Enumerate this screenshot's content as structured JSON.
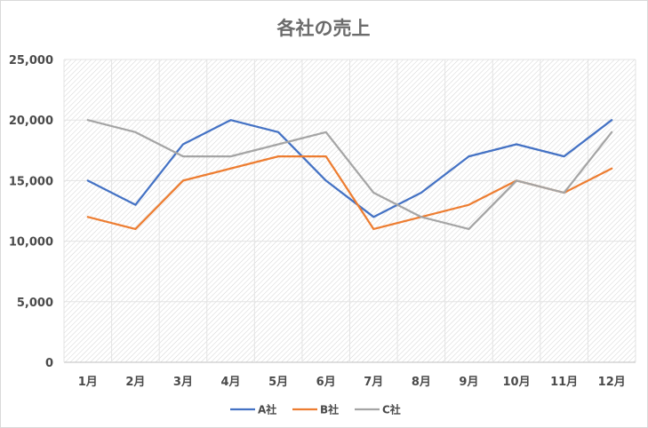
{
  "chart_data": {
    "type": "line",
    "title": "各社の売上",
    "categories": [
      "1月",
      "2月",
      "3月",
      "4月",
      "5月",
      "6月",
      "7月",
      "8月",
      "9月",
      "10月",
      "11月",
      "12月"
    ],
    "ylim": [
      0,
      25000
    ],
    "yticks": [
      0,
      5000,
      10000,
      15000,
      20000,
      25000
    ],
    "ytick_labels": [
      "0",
      "5,000",
      "10,000",
      "15,000",
      "20,000",
      "25,000"
    ],
    "grid": true,
    "legend_position": "bottom",
    "series": [
      {
        "name": "A社",
        "color": "#4472C4",
        "values": [
          15000,
          13000,
          18000,
          20000,
          19000,
          15000,
          12000,
          14000,
          17000,
          18000,
          17000,
          20000
        ]
      },
      {
        "name": "B社",
        "color": "#ED7D31",
        "values": [
          12000,
          11000,
          15000,
          16000,
          17000,
          17000,
          11000,
          12000,
          13000,
          15000,
          14000,
          16000
        ]
      },
      {
        "name": "C社",
        "color": "#A5A5A5",
        "values": [
          20000,
          19000,
          17000,
          17000,
          18000,
          19000,
          14000,
          12000,
          11000,
          15000,
          14000,
          19000
        ]
      }
    ]
  }
}
